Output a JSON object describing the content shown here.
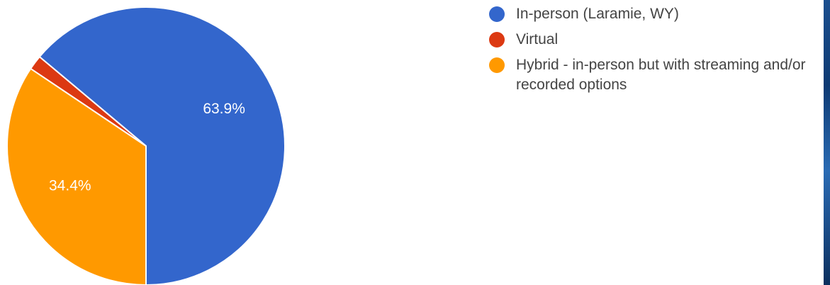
{
  "chart_data": {
    "type": "pie",
    "title": "",
    "slices": [
      {
        "label": "In-person (Laramie, WY)",
        "value": 63.9,
        "display": "63.9%",
        "color": "#3366cc"
      },
      {
        "label": "Virtual",
        "value": 1.7,
        "display": "",
        "color": "#dc3912"
      },
      {
        "label": "Hybrid - in-person but with streaming and/or recorded options",
        "value": 34.4,
        "display": "34.4%",
        "color": "#ff9900"
      }
    ],
    "start_angle_deg": 90,
    "direction": "counterclockwise",
    "legend_position": "right"
  },
  "colors": {
    "background": "#ffffff",
    "legend_text": "#444444",
    "slice_label": "#ffffff"
  }
}
